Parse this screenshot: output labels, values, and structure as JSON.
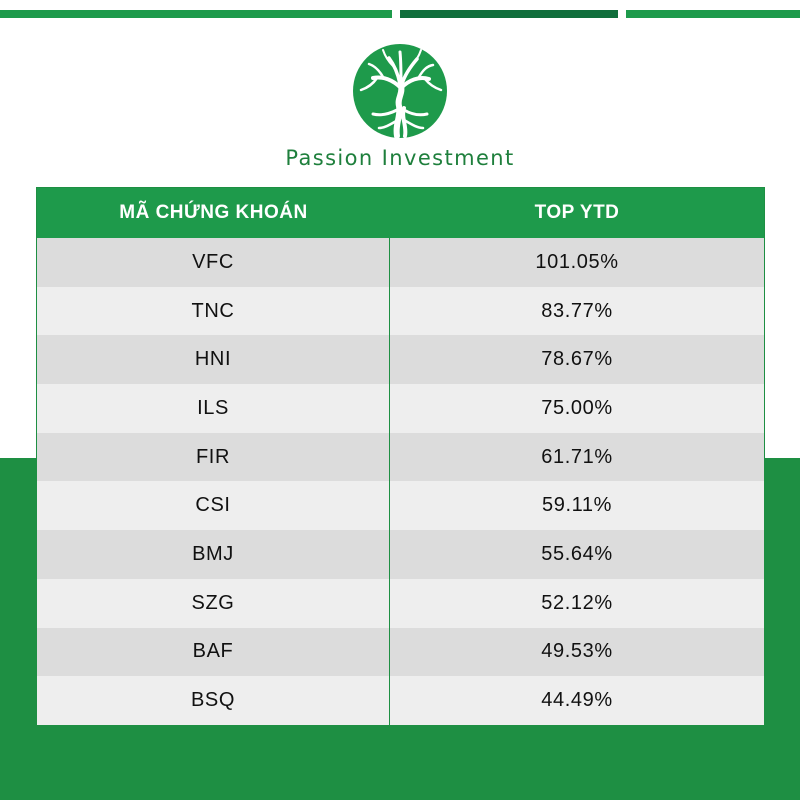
{
  "brand": {
    "name": "Passion Investment",
    "color": "#1e9a4b",
    "logo_icon": "tree-circle-icon"
  },
  "table": {
    "headers": [
      "MÃ CHỨNG KHOÁN",
      "TOP YTD"
    ],
    "rows": [
      {
        "ticker": "VFC",
        "ytd": "101.05%"
      },
      {
        "ticker": "TNC",
        "ytd": "83.77%"
      },
      {
        "ticker": "HNI",
        "ytd": "78.67%"
      },
      {
        "ticker": "ILS",
        "ytd": "75.00%"
      },
      {
        "ticker": "FIR",
        "ytd": "61.71%"
      },
      {
        "ticker": "CSI",
        "ytd": "59.11%"
      },
      {
        "ticker": "BMJ",
        "ytd": "55.64%"
      },
      {
        "ticker": "SZG",
        "ytd": "52.12%"
      },
      {
        "ticker": "BAF",
        "ytd": "49.53%"
      },
      {
        "ticker": "BSQ",
        "ytd": "44.49%"
      }
    ]
  }
}
